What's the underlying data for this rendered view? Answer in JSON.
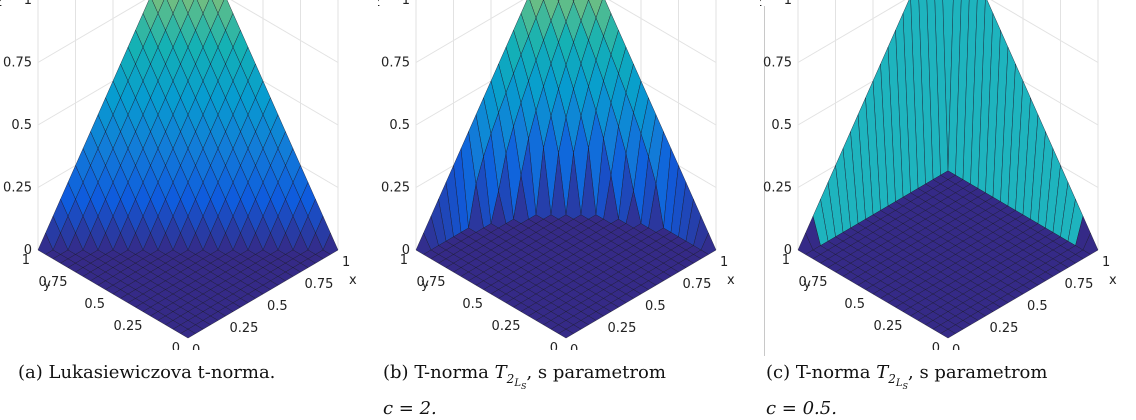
{
  "figures": [
    {
      "id": "a",
      "caption": {
        "label": "(a)",
        "text": "Lukasiewiczova t-norma.",
        "line2": ""
      },
      "axes": {
        "xlabel": "x",
        "ylabel": "y",
        "zlabel": "z"
      },
      "chart_data": {
        "type": "surface",
        "title": "",
        "function": "max(0, x + y - 1)",
        "x_ticks": [
          "0",
          "0.25",
          "0.5",
          "0.75",
          "1"
        ],
        "y_ticks": [
          "0",
          "0.25",
          "0.5",
          "0.75",
          "1"
        ],
        "z_ticks": [
          "0",
          "0.25",
          "0.5",
          "0.75",
          "1"
        ],
        "xlim": [
          0,
          1
        ],
        "ylim": [
          0,
          1
        ],
        "zlim": [
          0,
          1
        ],
        "grid": true,
        "colormap": "parula"
      }
    },
    {
      "id": "b",
      "caption": {
        "label": "(b)",
        "prefix": "T-norma",
        "symbol_base": "T",
        "symbol_sub": "2",
        "symbol_subsub": "L",
        "symbol_subsubsub": "S",
        "suffix": ", s parametrom",
        "line2": "c = 2."
      },
      "axes": {
        "xlabel": "x",
        "ylabel": "y",
        "zlabel": "z"
      },
      "chart_data": {
        "type": "surface",
        "title": "",
        "parameter_c": 2,
        "x_ticks": [
          "0",
          "0.25",
          "0.5",
          "0.75",
          "1"
        ],
        "y_ticks": [
          "0",
          "0.25",
          "0.5",
          "0.75",
          "1"
        ],
        "z_ticks": [
          "0",
          "0.25",
          "0.5",
          "0.75",
          "1"
        ],
        "xlim": [
          0,
          1
        ],
        "ylim": [
          0,
          1
        ],
        "zlim": [
          0,
          1
        ],
        "grid": true,
        "colormap": "parula"
      }
    },
    {
      "id": "c",
      "caption": {
        "label": "(c)",
        "prefix": "T-norma",
        "symbol_base": "T",
        "symbol_sub": "2",
        "symbol_subsub": "L",
        "symbol_subsubsub": "S",
        "suffix": ", s parametrom",
        "line2": "c = 0.5."
      },
      "axes": {
        "xlabel": "x",
        "ylabel": "y",
        "zlabel": "z"
      },
      "chart_data": {
        "type": "surface",
        "title": "",
        "parameter_c": 0.5,
        "x_ticks": [
          "0",
          "0.25",
          "0.5",
          "0.75",
          "1"
        ],
        "y_ticks": [
          "0",
          "0.25",
          "0.5",
          "0.75",
          "1"
        ],
        "z_ticks": [
          "0",
          "0.25",
          "0.5",
          "0.75",
          "1"
        ],
        "xlim": [
          0,
          1
        ],
        "ylim": [
          0,
          1
        ],
        "zlim": [
          0,
          1
        ],
        "grid": true,
        "colormap": "parula"
      }
    }
  ]
}
